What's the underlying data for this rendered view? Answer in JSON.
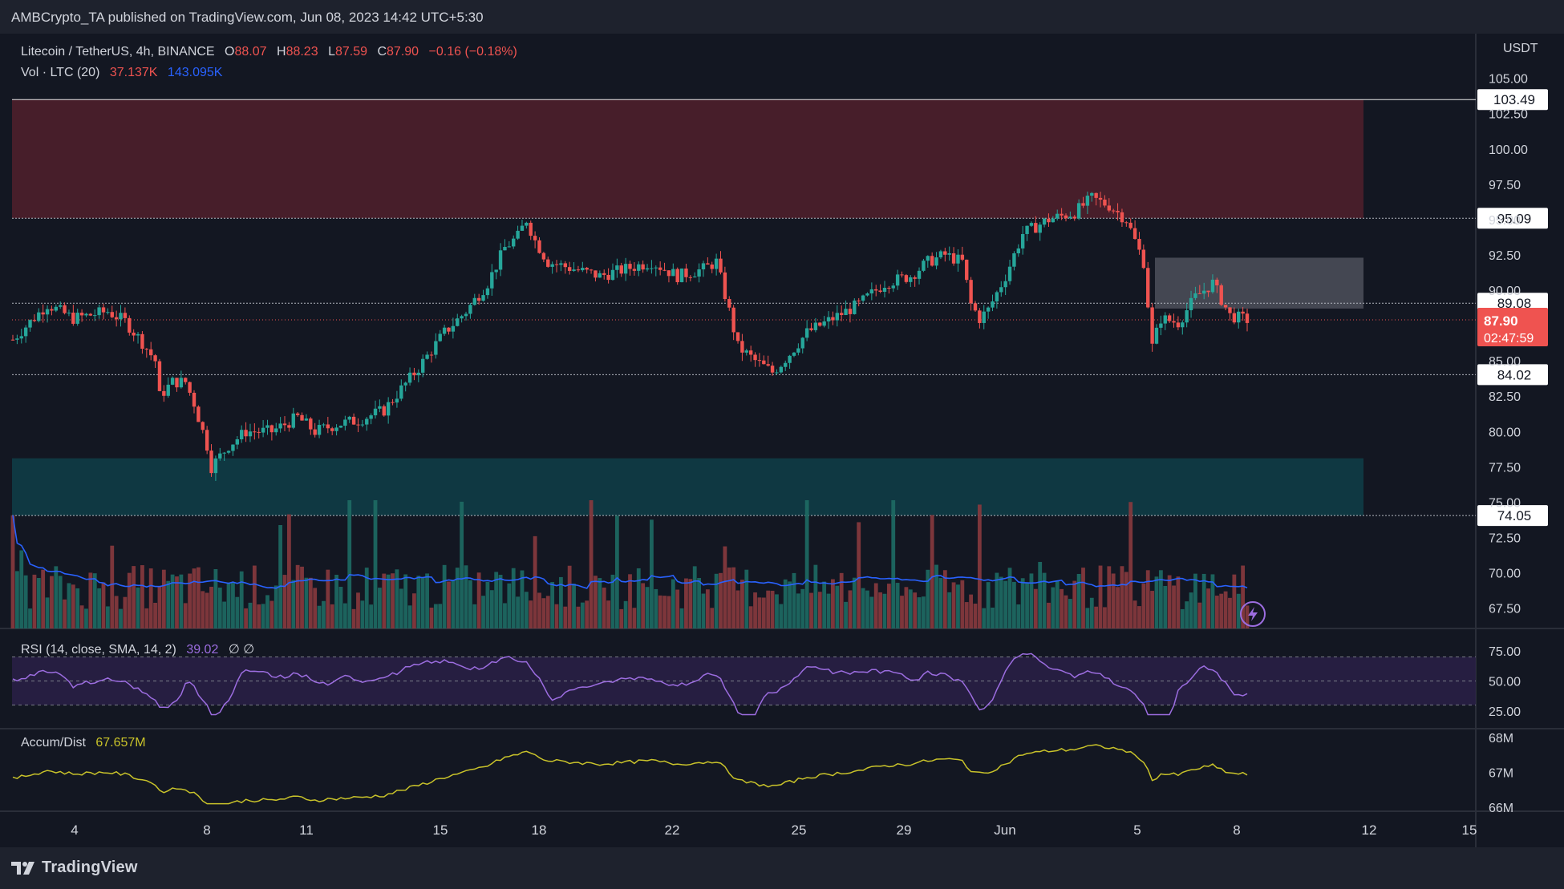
{
  "header": {
    "published": "AMBCrypto_TA published on TradingView.com, Jun 08, 2023 14:42 UTC+5:30"
  },
  "legend": {
    "symbol": "Litecoin / TetherUS, 4h, BINANCE",
    "o_label": "O",
    "o": "88.07",
    "h_label": "H",
    "h": "88.23",
    "l_label": "L",
    "l": "87.59",
    "c_label": "C",
    "c": "87.90",
    "change": "−0.16 (−0.18%)",
    "vol_label": "Vol · LTC (20)",
    "vol1": "37.137K",
    "vol2": "143.095K"
  },
  "rsi": {
    "label": "RSI (14, close, SMA, 14, 2)",
    "value": "39.02",
    "extra": "∅ ∅"
  },
  "ad": {
    "label": "Accum/Dist",
    "value": "67.657M"
  },
  "footer": {
    "brand": "TradingView"
  },
  "colors": {
    "bg": "#131722",
    "up": "#26a69a",
    "down": "#ef5350",
    "supply": "#4a1f2b",
    "demand": "#0f3a45",
    "rsi": "#9c6de0",
    "ad": "#c9c32a",
    "volma": "#2962ff"
  },
  "icons": {
    "replay": "lightning-icon"
  },
  "chart_data": {
    "type": "candlestick",
    "symbol": "Litecoin / TetherUS",
    "timeframe": "4h",
    "currency_label": "USDT",
    "y_ticks": [
      67.5,
      70,
      72.5,
      75,
      77.5,
      80,
      82.5,
      85,
      87.5,
      90,
      92.5,
      95,
      97.5,
      100,
      102.5,
      105
    ],
    "x_ticks": [
      "4",
      "8",
      "11",
      "15",
      "18",
      "22",
      "25",
      "29",
      "Jun",
      "5",
      "8",
      "12",
      "15"
    ],
    "levels": [
      103.49,
      95.09,
      89.08,
      84.02,
      74.05
    ],
    "level_labels": [
      "103.49",
      "95.09",
      "89.08",
      "84.02",
      "74.05"
    ],
    "last_price": "87.90",
    "countdown": "02:47:59",
    "zones": [
      {
        "name": "supply",
        "from": 95.09,
        "to": 103.49
      },
      {
        "name": "demand",
        "from": 74.05,
        "to": 78.1
      },
      {
        "name": "fair-value-gap",
        "from": 88.7,
        "to": 92.3
      }
    ],
    "anchors": [
      [
        0,
        86.5
      ],
      [
        8,
        89
      ],
      [
        14,
        88
      ],
      [
        22,
        88.5
      ],
      [
        26,
        87.8
      ],
      [
        30,
        86.3
      ],
      [
        33,
        85
      ],
      [
        34,
        82.5
      ],
      [
        37,
        83.5
      ],
      [
        40,
        83.5
      ],
      [
        42,
        82
      ],
      [
        45,
        79
      ],
      [
        46,
        77.5
      ],
      [
        50,
        79
      ],
      [
        54,
        80
      ],
      [
        60,
        80
      ],
      [
        66,
        81
      ],
      [
        70,
        80
      ],
      [
        75,
        80.5
      ],
      [
        80,
        80.8
      ],
      [
        86,
        81.5
      ],
      [
        90,
        83
      ],
      [
        94,
        84.5
      ],
      [
        100,
        87
      ],
      [
        105,
        88.5
      ],
      [
        110,
        90.5
      ],
      [
        114,
        93
      ],
      [
        117,
        93.8
      ],
      [
        119,
        95
      ],
      [
        121,
        93.5
      ],
      [
        124,
        92
      ],
      [
        130,
        91.5
      ],
      [
        136,
        91
      ],
      [
        142,
        91.5
      ],
      [
        148,
        92
      ],
      [
        154,
        91
      ],
      [
        160,
        91.5
      ],
      [
        163,
        92
      ],
      [
        166,
        88.5
      ],
      [
        168,
        86
      ],
      [
        172,
        85
      ],
      [
        176,
        84.2
      ],
      [
        178,
        84.8
      ],
      [
        180,
        85.5
      ],
      [
        184,
        87
      ],
      [
        190,
        88
      ],
      [
        196,
        89
      ],
      [
        202,
        90.5
      ],
      [
        208,
        91
      ],
      [
        212,
        92
      ],
      [
        216,
        92.5
      ],
      [
        220,
        92
      ],
      [
        222,
        89
      ],
      [
        224,
        88
      ],
      [
        226,
        88.6
      ],
      [
        230,
        91
      ],
      [
        234,
        94
      ],
      [
        240,
        95
      ],
      [
        246,
        95.5
      ],
      [
        250,
        96.5
      ],
      [
        254,
        96
      ],
      [
        258,
        95
      ],
      [
        260,
        93.5
      ],
      [
        262,
        92
      ],
      [
        264,
        86
      ],
      [
        266,
        88
      ],
      [
        270,
        87.7
      ],
      [
        274,
        89.5
      ],
      [
        278,
        90.5
      ],
      [
        282,
        88.2
      ],
      [
        286,
        87.9
      ]
    ],
    "rsi": {
      "ylim": [
        15,
        85
      ],
      "ticks": [
        25,
        50,
        75
      ],
      "bands": [
        30,
        70
      ]
    },
    "ad": {
      "ticks": [
        "66M",
        "67M",
        "68M"
      ]
    },
    "volume": {
      "ma_period": 20
    }
  }
}
